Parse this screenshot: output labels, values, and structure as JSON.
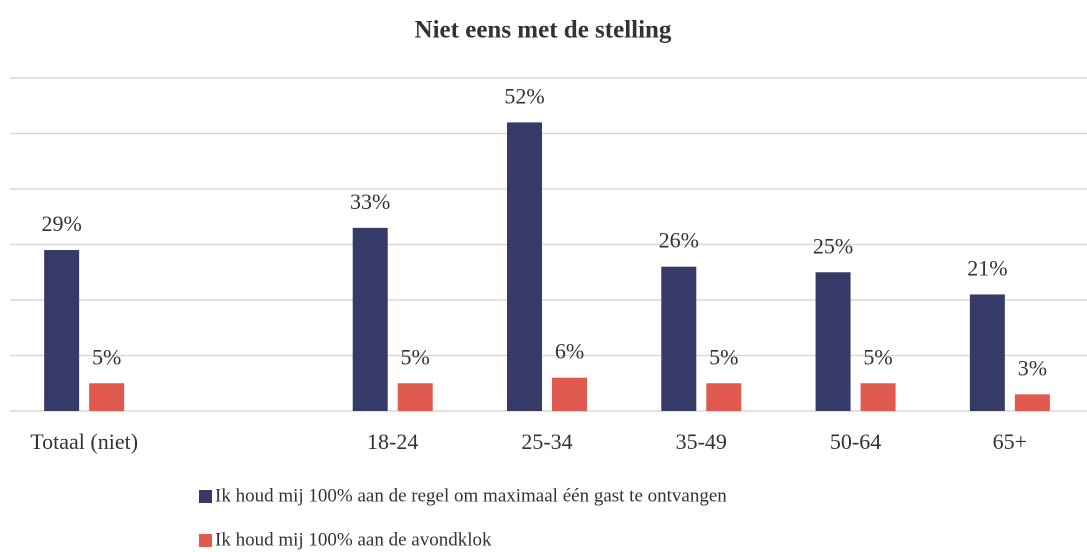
{
  "chart_data": {
    "type": "bar",
    "title": "Niet eens met de stelling",
    "categories": [
      "Totaal (niet)",
      null,
      "18-24",
      "25-34",
      "35-49",
      "50-64",
      "65+"
    ],
    "series": [
      {
        "name": "Ik houd mij 100% aan de regel om maximaal één gast te ontvangen",
        "color": "#353a66",
        "values": [
          29,
          null,
          33,
          52,
          26,
          25,
          21
        ],
        "value_labels": [
          "29%",
          null,
          "33%",
          "52%",
          "26%",
          "25%",
          "21%"
        ]
      },
      {
        "name": "Ik houd mij 100% aan de avondklok",
        "color": "#e05a50",
        "values": [
          5,
          null,
          5,
          6,
          5,
          5,
          3
        ],
        "value_labels": [
          "5%",
          null,
          "5%",
          "6%",
          "5%",
          "5%",
          "3%"
        ]
      }
    ],
    "ylim": [
      0,
      60
    ],
    "yticks": [
      0,
      10,
      20,
      30,
      40,
      50,
      60
    ],
    "grid": true,
    "legend": "bottom"
  }
}
